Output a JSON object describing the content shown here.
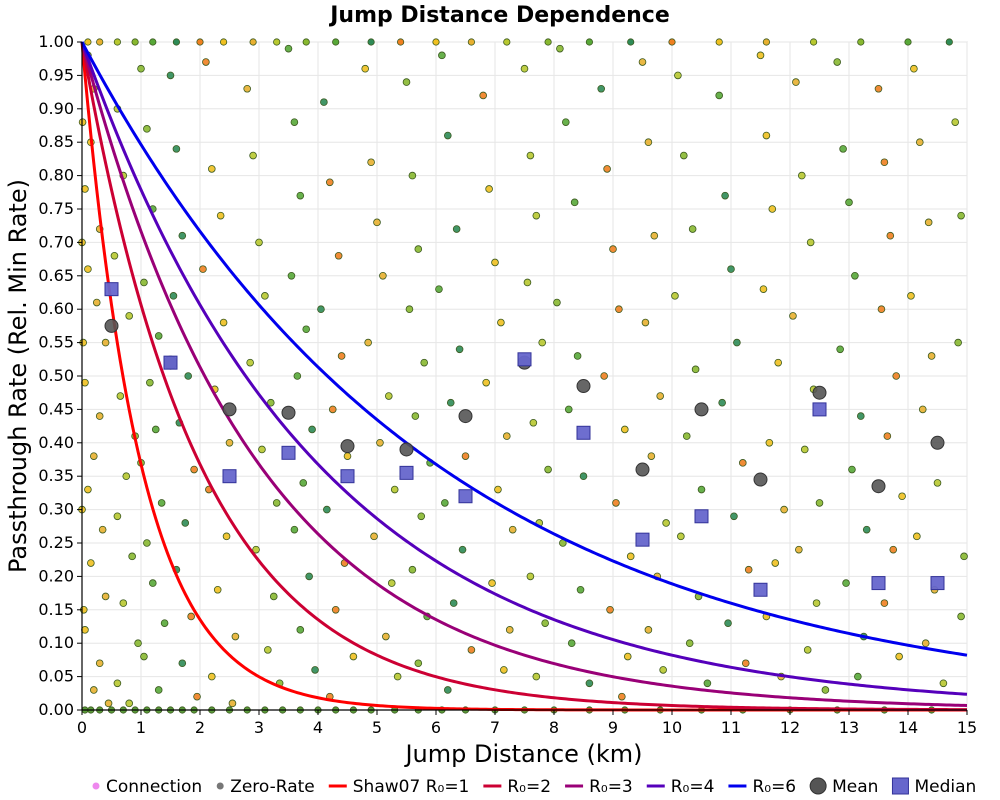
{
  "chart_data": {
    "type": "scatter",
    "title": "Jump Distance Dependence",
    "xlabel": "Jump Distance (km)",
    "ylabel": "Passthrough Rate (Rel. Min Rate)",
    "xlim": [
      0,
      15
    ],
    "ylim": [
      0,
      1.0
    ],
    "x_ticks": [
      0,
      1,
      2,
      3,
      4,
      5,
      6,
      7,
      8,
      9,
      10,
      11,
      12,
      13,
      14,
      15
    ],
    "y_ticks": [
      0.0,
      0.05,
      0.1,
      0.15,
      0.2,
      0.25,
      0.3,
      0.35,
      0.4,
      0.45,
      0.5,
      0.55,
      0.6,
      0.65,
      0.7,
      0.75,
      0.8,
      0.85,
      0.9,
      0.95,
      1.0
    ],
    "grid": true,
    "legend_position": "bottom",
    "legend": [
      {
        "label": "Connection",
        "kind": "point",
        "color": "#ee88ee"
      },
      {
        "label": "Zero-Rate",
        "kind": "point",
        "color": "#777777"
      },
      {
        "label": "Shaw07 R₀=1",
        "kind": "line",
        "color": "#ff0000"
      },
      {
        "label": "R₀=2",
        "kind": "line",
        "color": "#cc0033"
      },
      {
        "label": "R₀=3",
        "kind": "line",
        "color": "#990077"
      },
      {
        "label": "R₀=4",
        "kind": "line",
        "color": "#5500bb"
      },
      {
        "label": "R₀=6",
        "kind": "line",
        "color": "#0000ee"
      },
      {
        "label": "Mean",
        "kind": "circle",
        "color": "#555555"
      },
      {
        "label": "Median",
        "kind": "square",
        "color": "#6666cc"
      }
    ],
    "series_curves": [
      {
        "name": "Shaw07 R₀=1",
        "r0": 1,
        "color": "#ff0000"
      },
      {
        "name": "R₀=2",
        "r0": 2,
        "color": "#cc0033"
      },
      {
        "name": "R₀=3",
        "r0": 3,
        "color": "#990077"
      },
      {
        "name": "R₀=4",
        "r0": 4,
        "color": "#5500bb"
      },
      {
        "name": "R₀=6",
        "r0": 6,
        "color": "#0000ee"
      }
    ],
    "mean": {
      "x": [
        0.5,
        1.5,
        2.5,
        3.5,
        4.5,
        5.5,
        6.5,
        7.5,
        8.5,
        9.5,
        10.5,
        11.5,
        12.5,
        13.5,
        14.5
      ],
      "y": [
        0.575,
        0.52,
        0.45,
        0.445,
        0.395,
        0.39,
        0.44,
        0.52,
        0.485,
        0.36,
        0.45,
        0.345,
        0.475,
        0.335,
        0.4
      ],
      "color": "#555555"
    },
    "median": {
      "x": [
        0.5,
        1.5,
        2.5,
        3.5,
        4.5,
        5.5,
        6.5,
        7.5,
        8.5,
        9.5,
        10.5,
        11.5,
        12.5,
        13.5,
        14.5
      ],
      "y": [
        0.63,
        0.52,
        0.35,
        0.385,
        0.35,
        0.355,
        0.32,
        0.525,
        0.415,
        0.255,
        0.29,
        0.18,
        0.45,
        0.19,
        0.19
      ],
      "color": "#6666cc"
    },
    "scatter_points": {
      "description_colors": [
        "#f0c020",
        "#e8b030",
        "#b8c830",
        "#88b830",
        "#58a838",
        "#2e8b57",
        "#f08020"
      ],
      "points": [
        [
          0.1,
          0.98
        ],
        [
          0.2,
          0.93
        ],
        [
          0.15,
          0.85
        ],
        [
          0.05,
          0.78
        ],
        [
          0.3,
          0.72
        ],
        [
          0.1,
          0.66
        ],
        [
          0.25,
          0.61
        ],
        [
          0.4,
          0.55
        ],
        [
          0.05,
          0.49
        ],
        [
          0.3,
          0.44
        ],
        [
          0.2,
          0.38
        ],
        [
          0.1,
          0.33
        ],
        [
          0.35,
          0.27
        ],
        [
          0.15,
          0.22
        ],
        [
          0.4,
          0.17
        ],
        [
          0.05,
          0.12
        ],
        [
          0.3,
          0.07
        ],
        [
          0.2,
          0.03
        ],
        [
          0.45,
          0.01
        ],
        [
          0.6,
          0.9
        ],
        [
          0.7,
          0.8
        ],
        [
          0.55,
          0.68
        ],
        [
          0.8,
          0.59
        ],
        [
          0.65,
          0.47
        ],
        [
          0.9,
          0.41
        ],
        [
          0.75,
          0.35
        ],
        [
          0.6,
          0.29
        ],
        [
          0.85,
          0.23
        ],
        [
          0.7,
          0.16
        ],
        [
          0.95,
          0.1
        ],
        [
          0.6,
          0.04
        ],
        [
          0.8,
          0.01
        ],
        [
          1.0,
          0.96
        ],
        [
          1.1,
          0.87
        ],
        [
          1.2,
          0.75
        ],
        [
          1.05,
          0.64
        ],
        [
          1.3,
          0.56
        ],
        [
          1.15,
          0.49
        ],
        [
          1.25,
          0.42
        ],
        [
          1.0,
          0.37
        ],
        [
          1.35,
          0.31
        ],
        [
          1.1,
          0.25
        ],
        [
          1.2,
          0.19
        ],
        [
          1.4,
          0.13
        ],
        [
          1.05,
          0.08
        ],
        [
          1.3,
          0.03
        ],
        [
          1.5,
          0.95
        ],
        [
          1.6,
          0.84
        ],
        [
          1.7,
          0.71
        ],
        [
          1.55,
          0.62
        ],
        [
          1.8,
          0.5
        ],
        [
          1.65,
          0.43
        ],
        [
          1.9,
          0.36
        ],
        [
          1.75,
          0.28
        ],
        [
          1.6,
          0.21
        ],
        [
          1.85,
          0.14
        ],
        [
          1.7,
          0.07
        ],
        [
          1.95,
          0.02
        ],
        [
          2.1,
          0.97
        ],
        [
          2.2,
          0.81
        ],
        [
          2.35,
          0.74
        ],
        [
          2.05,
          0.66
        ],
        [
          2.4,
          0.58
        ],
        [
          2.25,
          0.48
        ],
        [
          2.5,
          0.4
        ],
        [
          2.15,
          0.33
        ],
        [
          2.45,
          0.26
        ],
        [
          2.3,
          0.18
        ],
        [
          2.6,
          0.11
        ],
        [
          2.2,
          0.05
        ],
        [
          2.55,
          0.01
        ],
        [
          2.8,
          0.93
        ],
        [
          2.9,
          0.83
        ],
        [
          3.0,
          0.7
        ],
        [
          3.1,
          0.62
        ],
        [
          2.85,
          0.52
        ],
        [
          3.2,
          0.46
        ],
        [
          3.05,
          0.39
        ],
        [
          3.3,
          0.31
        ],
        [
          2.95,
          0.24
        ],
        [
          3.25,
          0.17
        ],
        [
          3.15,
          0.09
        ],
        [
          3.35,
          0.04
        ],
        [
          3.5,
          0.99
        ],
        [
          3.6,
          0.88
        ],
        [
          3.7,
          0.77
        ],
        [
          3.55,
          0.65
        ],
        [
          3.8,
          0.57
        ],
        [
          3.65,
          0.5
        ],
        [
          3.9,
          0.42
        ],
        [
          3.75,
          0.34
        ],
        [
          3.6,
          0.27
        ],
        [
          3.85,
          0.2
        ],
        [
          3.7,
          0.12
        ],
        [
          3.95,
          0.06
        ],
        [
          4.1,
          0.91
        ],
        [
          4.2,
          0.79
        ],
        [
          4.35,
          0.68
        ],
        [
          4.05,
          0.6
        ],
        [
          4.4,
          0.53
        ],
        [
          4.25,
          0.45
        ],
        [
          4.5,
          0.38
        ],
        [
          4.15,
          0.3
        ],
        [
          4.45,
          0.22
        ],
        [
          4.3,
          0.15
        ],
        [
          4.6,
          0.08
        ],
        [
          4.2,
          0.02
        ],
        [
          4.8,
          0.96
        ],
        [
          4.9,
          0.82
        ],
        [
          5.0,
          0.73
        ],
        [
          5.1,
          0.65
        ],
        [
          4.85,
          0.55
        ],
        [
          5.2,
          0.47
        ],
        [
          5.05,
          0.4
        ],
        [
          5.3,
          0.33
        ],
        [
          4.95,
          0.26
        ],
        [
          5.25,
          0.19
        ],
        [
          5.15,
          0.11
        ],
        [
          5.35,
          0.05
        ],
        [
          5.5,
          0.94
        ],
        [
          5.6,
          0.8
        ],
        [
          5.7,
          0.69
        ],
        [
          5.55,
          0.6
        ],
        [
          5.8,
          0.52
        ],
        [
          5.65,
          0.44
        ],
        [
          5.9,
          0.37
        ],
        [
          5.75,
          0.29
        ],
        [
          5.6,
          0.21
        ],
        [
          5.85,
          0.14
        ],
        [
          5.7,
          0.07
        ],
        [
          6.1,
          0.98
        ],
        [
          6.2,
          0.86
        ],
        [
          6.35,
          0.72
        ],
        [
          6.05,
          0.63
        ],
        [
          6.4,
          0.54
        ],
        [
          6.25,
          0.46
        ],
        [
          6.5,
          0.38
        ],
        [
          6.15,
          0.31
        ],
        [
          6.45,
          0.24
        ],
        [
          6.3,
          0.16
        ],
        [
          6.6,
          0.09
        ],
        [
          6.2,
          0.03
        ],
        [
          6.8,
          0.92
        ],
        [
          6.9,
          0.78
        ],
        [
          7.0,
          0.67
        ],
        [
          7.1,
          0.58
        ],
        [
          6.85,
          0.49
        ],
        [
          7.2,
          0.41
        ],
        [
          7.05,
          0.33
        ],
        [
          7.3,
          0.27
        ],
        [
          6.95,
          0.19
        ],
        [
          7.25,
          0.12
        ],
        [
          7.15,
          0.06
        ],
        [
          7.5,
          0.96
        ],
        [
          7.6,
          0.83
        ],
        [
          7.7,
          0.74
        ],
        [
          7.55,
          0.64
        ],
        [
          7.8,
          0.55
        ],
        [
          7.65,
          0.43
        ],
        [
          7.9,
          0.36
        ],
        [
          7.75,
          0.28
        ],
        [
          7.6,
          0.2
        ],
        [
          7.85,
          0.13
        ],
        [
          7.7,
          0.05
        ],
        [
          8.1,
          0.99
        ],
        [
          8.2,
          0.88
        ],
        [
          8.35,
          0.76
        ],
        [
          8.05,
          0.61
        ],
        [
          8.4,
          0.53
        ],
        [
          8.25,
          0.45
        ],
        [
          8.5,
          0.35
        ],
        [
          8.15,
          0.25
        ],
        [
          8.45,
          0.18
        ],
        [
          8.3,
          0.1
        ],
        [
          8.6,
          0.04
        ],
        [
          8.8,
          0.93
        ],
        [
          8.9,
          0.81
        ],
        [
          9.0,
          0.69
        ],
        [
          9.1,
          0.6
        ],
        [
          8.85,
          0.5
        ],
        [
          9.2,
          0.42
        ],
        [
          9.05,
          0.31
        ],
        [
          9.3,
          0.23
        ],
        [
          8.95,
          0.15
        ],
        [
          9.25,
          0.08
        ],
        [
          9.15,
          0.02
        ],
        [
          9.5,
          0.97
        ],
        [
          9.6,
          0.85
        ],
        [
          9.7,
          0.71
        ],
        [
          9.55,
          0.58
        ],
        [
          9.8,
          0.47
        ],
        [
          9.65,
          0.38
        ],
        [
          9.9,
          0.28
        ],
        [
          9.75,
          0.2
        ],
        [
          9.6,
          0.12
        ],
        [
          9.85,
          0.06
        ],
        [
          10.1,
          0.95
        ],
        [
          10.2,
          0.83
        ],
        [
          10.35,
          0.72
        ],
        [
          10.05,
          0.62
        ],
        [
          10.4,
          0.51
        ],
        [
          10.25,
          0.41
        ],
        [
          10.5,
          0.33
        ],
        [
          10.15,
          0.26
        ],
        [
          10.45,
          0.17
        ],
        [
          10.3,
          0.1
        ],
        [
          10.6,
          0.04
        ],
        [
          10.8,
          0.92
        ],
        [
          10.9,
          0.77
        ],
        [
          11.0,
          0.66
        ],
        [
          11.1,
          0.55
        ],
        [
          10.85,
          0.46
        ],
        [
          11.2,
          0.37
        ],
        [
          11.05,
          0.29
        ],
        [
          11.3,
          0.21
        ],
        [
          10.95,
          0.13
        ],
        [
          11.25,
          0.07
        ],
        [
          11.5,
          0.98
        ],
        [
          11.6,
          0.86
        ],
        [
          11.7,
          0.75
        ],
        [
          11.55,
          0.63
        ],
        [
          11.8,
          0.52
        ],
        [
          11.65,
          0.4
        ],
        [
          11.9,
          0.3
        ],
        [
          11.75,
          0.22
        ],
        [
          11.6,
          0.14
        ],
        [
          11.85,
          0.05
        ],
        [
          12.1,
          0.94
        ],
        [
          12.2,
          0.8
        ],
        [
          12.35,
          0.7
        ],
        [
          12.05,
          0.59
        ],
        [
          12.4,
          0.48
        ],
        [
          12.25,
          0.39
        ],
        [
          12.5,
          0.31
        ],
        [
          12.15,
          0.24
        ],
        [
          12.45,
          0.16
        ],
        [
          12.3,
          0.09
        ],
        [
          12.6,
          0.03
        ],
        [
          12.8,
          0.97
        ],
        [
          12.9,
          0.84
        ],
        [
          13.0,
          0.76
        ],
        [
          13.1,
          0.65
        ],
        [
          12.85,
          0.54
        ],
        [
          13.2,
          0.44
        ],
        [
          13.05,
          0.36
        ],
        [
          13.3,
          0.27
        ],
        [
          12.95,
          0.19
        ],
        [
          13.25,
          0.11
        ],
        [
          13.15,
          0.05
        ],
        [
          13.5,
          0.93
        ],
        [
          13.6,
          0.82
        ],
        [
          13.7,
          0.71
        ],
        [
          13.55,
          0.6
        ],
        [
          13.8,
          0.5
        ],
        [
          13.65,
          0.41
        ],
        [
          13.9,
          0.32
        ],
        [
          13.75,
          0.24
        ],
        [
          13.6,
          0.16
        ],
        [
          13.85,
          0.08
        ],
        [
          14.1,
          0.96
        ],
        [
          14.2,
          0.85
        ],
        [
          14.35,
          0.73
        ],
        [
          14.05,
          0.62
        ],
        [
          14.4,
          0.53
        ],
        [
          14.25,
          0.45
        ],
        [
          14.5,
          0.34
        ],
        [
          14.15,
          0.26
        ],
        [
          14.45,
          0.18
        ],
        [
          14.3,
          0.1
        ],
        [
          14.6,
          0.04
        ],
        [
          14.8,
          0.88
        ],
        [
          14.9,
          0.74
        ],
        [
          14.85,
          0.55
        ],
        [
          14.95,
          0.23
        ],
        [
          14.9,
          0.14
        ],
        [
          0.0,
          0.7
        ],
        [
          0.0,
          0.3
        ],
        [
          0.02,
          0.55
        ],
        [
          0.03,
          0.15
        ],
        [
          0.01,
          0.88
        ]
      ]
    },
    "zero_rate_points": {
      "y": 0,
      "x": [
        0.05,
        0.15,
        0.3,
        0.5,
        0.7,
        0.9,
        1.1,
        1.3,
        1.5,
        1.7,
        1.9,
        2.2,
        2.5,
        2.8,
        3.1,
        3.4,
        3.7,
        4.0,
        4.3,
        4.6,
        4.9,
        5.3,
        5.7,
        6.1,
        6.5,
        7.0,
        7.5,
        8.0,
        8.6,
        9.2,
        9.8,
        10.5,
        11.2,
        12.0,
        12.8,
        13.6,
        14.4
      ]
    },
    "top_edge_points": {
      "y": 1.0,
      "x": [
        0.1,
        0.3,
        0.6,
        0.9,
        1.2,
        1.6,
        2.0,
        2.4,
        2.9,
        3.3,
        3.8,
        4.3,
        4.9,
        5.4,
        6.0,
        6.6,
        7.2,
        7.9,
        8.6,
        9.3,
        10.0,
        10.8,
        11.6,
        12.4,
        13.2,
        14.0,
        14.7
      ]
    }
  }
}
